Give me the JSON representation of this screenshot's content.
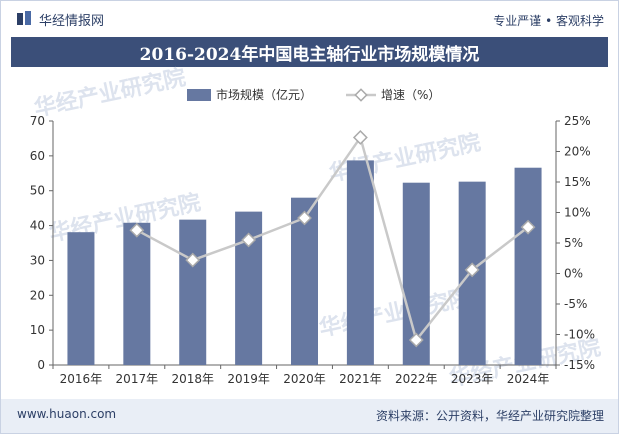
{
  "header": {
    "brand": "华经情报网",
    "tagline": "专业严谨 • 客观科学"
  },
  "chart_data": {
    "type": "bar",
    "title": "2016-2024年中国电主轴行业市场规模情况",
    "categories": [
      "2016年",
      "2017年",
      "2018年",
      "2019年",
      "2020年",
      "2021年",
      "2022年",
      "2023年",
      "2024年"
    ],
    "series": [
      {
        "name": "市场规模（亿元）",
        "type": "bar",
        "axis": "left",
        "color": "#6678a1",
        "values": [
          38.1,
          40.8,
          41.7,
          44.0,
          48.0,
          58.7,
          52.3,
          52.6,
          56.6
        ]
      },
      {
        "name": "增速（%）",
        "type": "line",
        "axis": "right",
        "color": "#c9c9c9",
        "values": [
          null,
          7.1,
          2.2,
          5.5,
          9.1,
          22.3,
          -10.9,
          0.6,
          7.6
        ]
      }
    ],
    "y_left": {
      "min": 0,
      "max": 70,
      "step": 10,
      "ticks": [
        "0",
        "10",
        "20",
        "30",
        "40",
        "50",
        "60",
        "70"
      ]
    },
    "y_right": {
      "min": -15,
      "max": 25,
      "step": 5,
      "ticks": [
        "-15%",
        "-10%",
        "-5%",
        "0%",
        "5%",
        "10%",
        "15%",
        "20%",
        "25%"
      ]
    },
    "grid": false,
    "legend_position": "top-center"
  },
  "watermarks": [
    "华经产业研究院",
    "www.huaon.com"
  ],
  "footer": {
    "website": "www.huaon.com",
    "source": "资料来源：公开资料，华经产业研究院整理"
  }
}
